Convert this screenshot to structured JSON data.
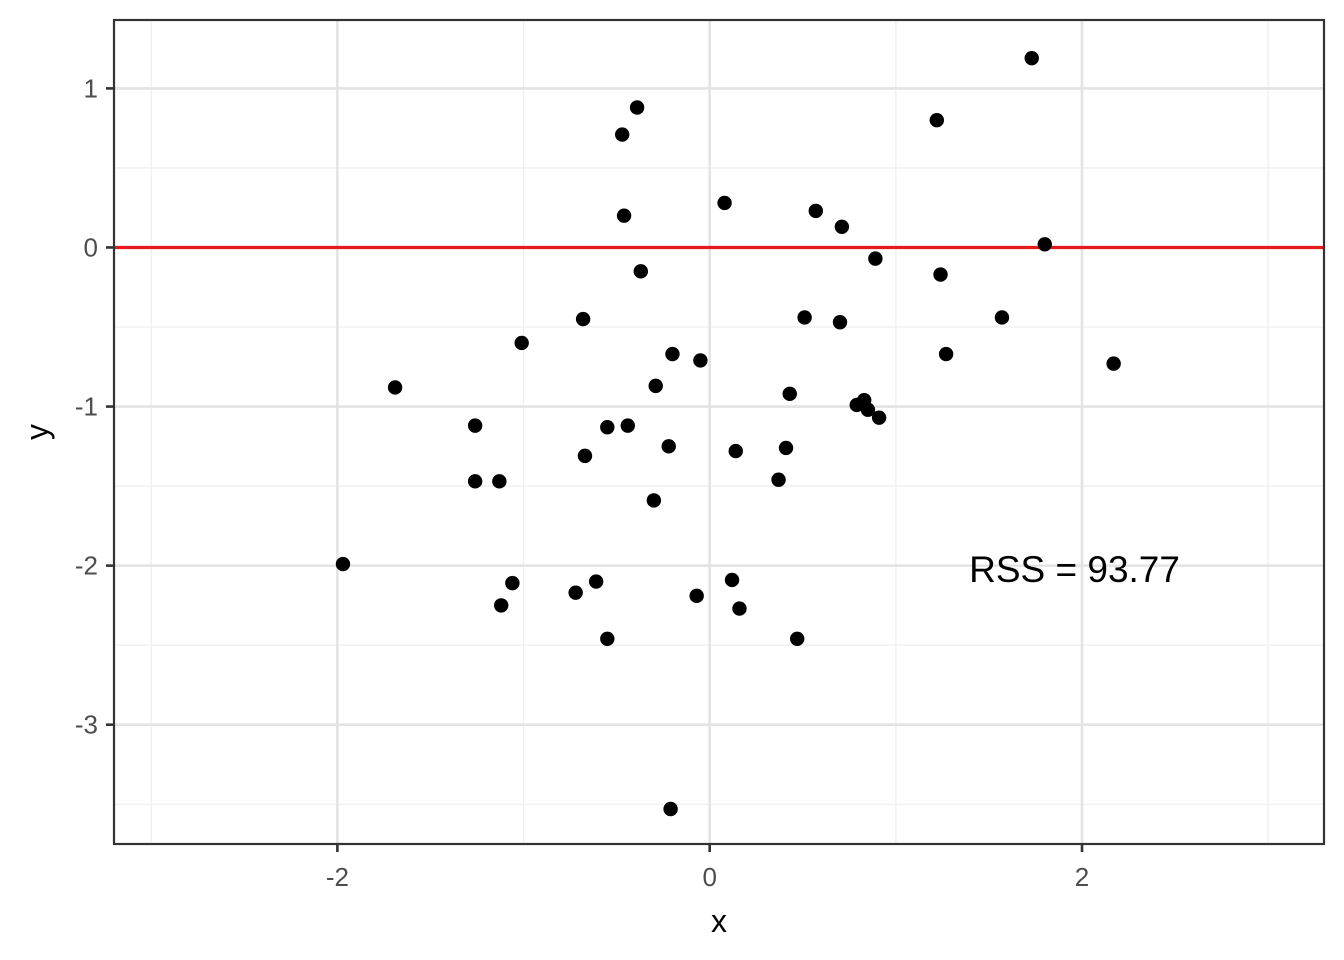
{
  "chart_data": {
    "type": "scatter",
    "title": "",
    "xlabel": "x",
    "ylabel": "y",
    "xlim": [
      -3.2,
      3.3
    ],
    "ylim": [
      -3.75,
      1.43
    ],
    "x_ticks": [
      -2,
      0,
      2
    ],
    "x_tick_labels": [
      "-2",
      "0",
      "2"
    ],
    "x_minor_ticks": [
      -3,
      -1,
      1,
      3
    ],
    "y_ticks": [
      1,
      0,
      -1,
      -2,
      -3
    ],
    "y_tick_labels": [
      "1",
      "0",
      "-1",
      "-2",
      "-3"
    ],
    "y_minor_ticks": [
      0.5,
      -0.5,
      -1.5,
      -2.5,
      -3.5
    ],
    "grid": true,
    "legend": "none",
    "hline": {
      "y": 0,
      "color": "#e41a1c"
    },
    "point_color": "#000000",
    "annotation": {
      "text": "RSS =  93.77",
      "x": 1.96,
      "y": -2.02
    },
    "points": [
      [
        -1.97,
        -1.99
      ],
      [
        -1.69,
        -0.88
      ],
      [
        -1.26,
        -1.12
      ],
      [
        -1.26,
        -1.47
      ],
      [
        -1.13,
        -1.47
      ],
      [
        -1.12,
        -2.25
      ],
      [
        -1.06,
        -2.11
      ],
      [
        -1.01,
        -0.6
      ],
      [
        -0.72,
        -2.17
      ],
      [
        -0.68,
        -0.45
      ],
      [
        -0.67,
        -1.31
      ],
      [
        -0.61,
        -2.1
      ],
      [
        -0.55,
        -1.13
      ],
      [
        -0.55,
        -2.46
      ],
      [
        -0.47,
        0.71
      ],
      [
        -0.46,
        0.2
      ],
      [
        -0.44,
        -1.12
      ],
      [
        -0.39,
        0.88
      ],
      [
        -0.37,
        -0.15
      ],
      [
        -0.29,
        -0.87
      ],
      [
        -0.3,
        -1.59
      ],
      [
        -0.22,
        -1.25
      ],
      [
        -0.2,
        -0.67
      ],
      [
        -0.21,
        -3.53
      ],
      [
        -0.07,
        -2.19
      ],
      [
        -0.05,
        -0.71
      ],
      [
        0.08,
        0.28
      ],
      [
        0.12,
        -2.09
      ],
      [
        0.14,
        -1.28
      ],
      [
        0.16,
        -2.27
      ],
      [
        0.37,
        -1.46
      ],
      [
        0.41,
        -1.26
      ],
      [
        0.43,
        -0.92
      ],
      [
        0.47,
        -2.46
      ],
      [
        0.51,
        -0.44
      ],
      [
        0.57,
        0.23
      ],
      [
        0.7,
        -0.47
      ],
      [
        0.71,
        0.13
      ],
      [
        0.79,
        -0.99
      ],
      [
        0.83,
        -0.96
      ],
      [
        0.85,
        -1.02
      ],
      [
        0.89,
        -0.07
      ],
      [
        0.91,
        -1.07
      ],
      [
        1.22,
        0.8
      ],
      [
        1.24,
        -0.17
      ],
      [
        1.27,
        -0.67
      ],
      [
        1.57,
        -0.44
      ],
      [
        1.73,
        1.19
      ],
      [
        1.8,
        0.02
      ],
      [
        2.17,
        -0.73
      ]
    ]
  }
}
